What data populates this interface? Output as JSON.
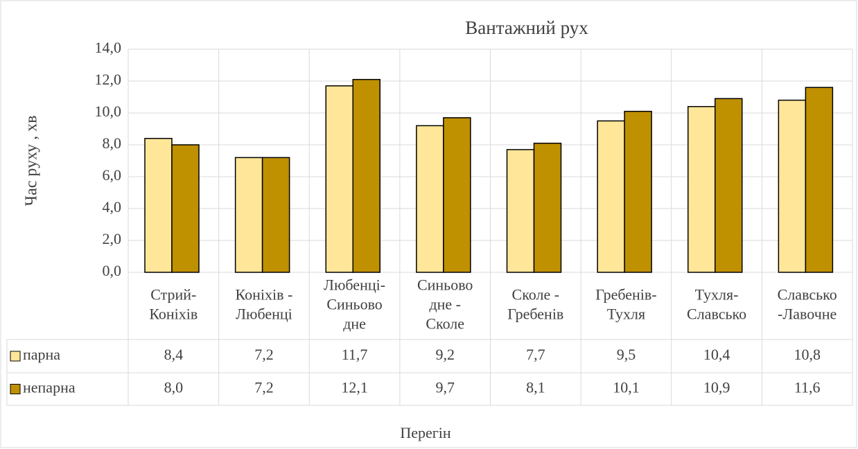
{
  "chart_data": {
    "type": "bar",
    "title": "Вантажний    рух",
    "y_label": "Час руху , хв",
    "x_label": "Перегін",
    "categories": [
      "Стрий-\nКоніхів",
      "Коніхів -\nЛюбенці",
      "Любенці-\nСиньово\nдне",
      "Синьово\nдне -\nСколе",
      "Сколе -\nГребенів",
      "Гребенів-\nТухля",
      "Тухля-\nСлавсько",
      "Славсько\n-Лавочне"
    ],
    "series": [
      {
        "name": "парна",
        "color": "#ffe699",
        "values": [
          8.4,
          7.2,
          11.7,
          9.2,
          7.7,
          9.5,
          10.4,
          10.8
        ],
        "value_labels": [
          "8,4",
          "7,2",
          "11,7",
          "9,2",
          "7,7",
          "9,5",
          "10,4",
          "10,8"
        ]
      },
      {
        "name": "непарна",
        "color": "#bf9000",
        "values": [
          8.0,
          7.2,
          12.1,
          9.7,
          8.1,
          10.1,
          10.9,
          11.6
        ],
        "value_labels": [
          "8,0",
          "7,2",
          "12,1",
          "9,7",
          "8,1",
          "10,1",
          "10,9",
          "11,6"
        ]
      }
    ],
    "ylim": [
      0,
      14
    ],
    "yticks": [
      {
        "value": 0,
        "label": "0,0"
      },
      {
        "value": 2,
        "label": "2,0"
      },
      {
        "value": 4,
        "label": "4,0"
      },
      {
        "value": 6,
        "label": "6,0"
      },
      {
        "value": 8,
        "label": "8,0"
      },
      {
        "value": 10,
        "label": "10,0"
      },
      {
        "value": 12,
        "label": "12,0"
      },
      {
        "value": 14,
        "label": "14,0"
      }
    ],
    "grid": true
  }
}
